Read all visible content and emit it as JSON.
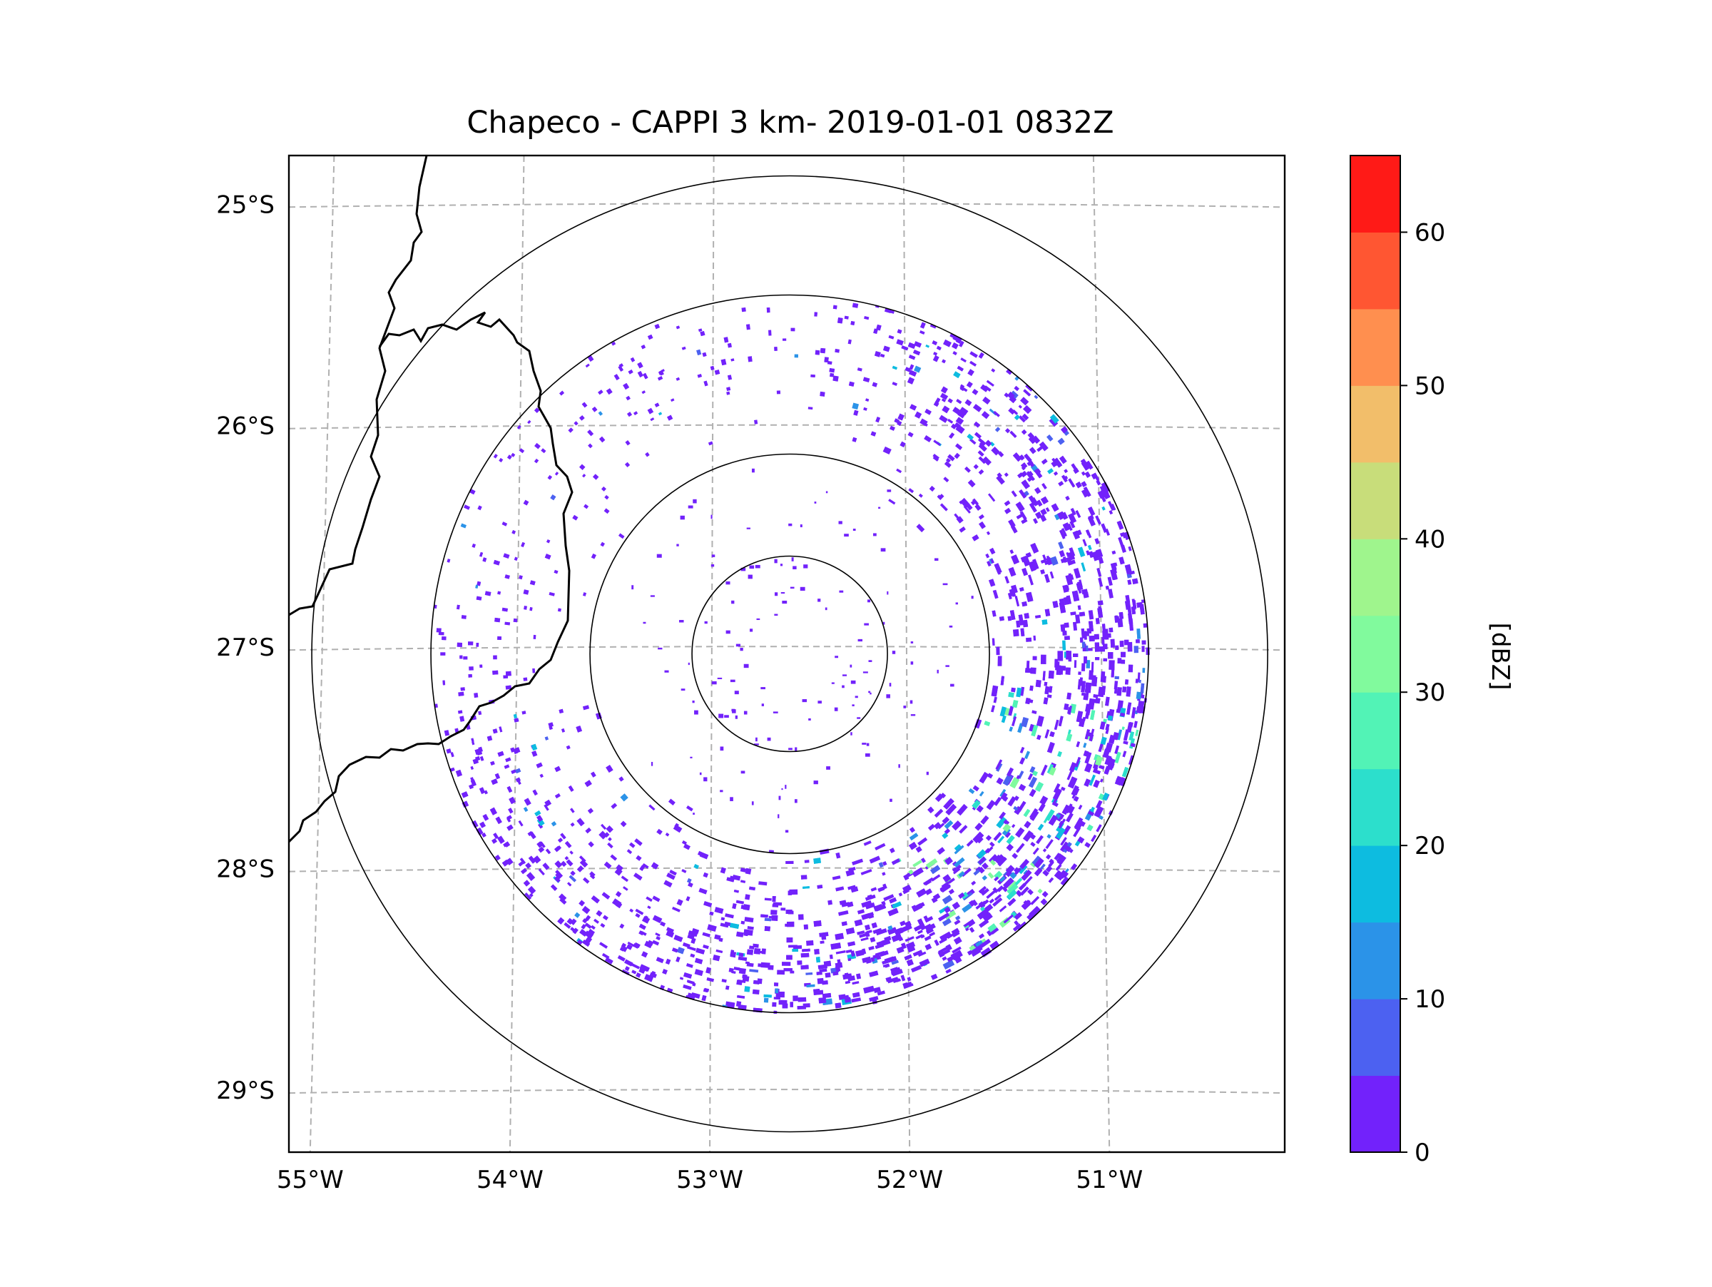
{
  "title": "Chapeco - CAPPI 3 km- 2019-01-01 0832Z",
  "map": {
    "lon_range": [
      -55.18,
      -50.05
    ],
    "lat_range": [
      -29.28,
      -24.78
    ],
    "radar_center": {
      "lon": -52.6,
      "lat": -27.03
    },
    "lon_ticks": [
      {
        "value": -55,
        "label": "55°W"
      },
      {
        "value": -54,
        "label": "54°W"
      },
      {
        "value": -53,
        "label": "53°W"
      },
      {
        "value": -52,
        "label": "52°W"
      },
      {
        "value": -51,
        "label": "51°W"
      }
    ],
    "lat_ticks": [
      {
        "value": -25,
        "label": "25°S"
      },
      {
        "value": -26,
        "label": "26°S"
      },
      {
        "value": -27,
        "label": "27°S"
      },
      {
        "value": -28,
        "label": "28°S"
      },
      {
        "value": -29,
        "label": "29°S"
      }
    ],
    "range_rings_deg": [
      0.5,
      1.0,
      1.8,
      2.4
    ]
  },
  "colorbar": {
    "label": "[dBZ]",
    "min": 0,
    "max": 65,
    "step": 5,
    "ticks": [
      {
        "value": 0,
        "label": "0"
      },
      {
        "value": 10,
        "label": "10"
      },
      {
        "value": 20,
        "label": "20"
      },
      {
        "value": 30,
        "label": "30"
      },
      {
        "value": 40,
        "label": "40"
      },
      {
        "value": 50,
        "label": "50"
      },
      {
        "value": 60,
        "label": "60"
      }
    ],
    "colors": [
      "#7222fb",
      "#4c61f1",
      "#2b93e8",
      "#0dbce0",
      "#2cdfcc",
      "#52f3b6",
      "#81fa9d",
      "#9ff58d",
      "#c8dd7a",
      "#f2be6a",
      "#ff8f4f",
      "#ff5632",
      "#ff1a17"
    ]
  }
}
